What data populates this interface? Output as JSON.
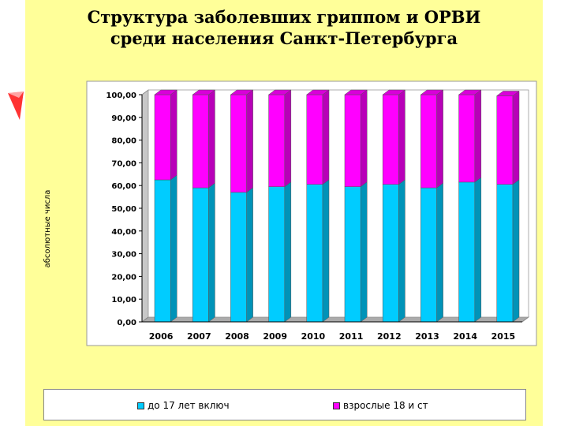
{
  "title_lines": [
    "Структура заболевших гриппом и ОРВИ",
    "среди населения Санкт-Петербурга"
  ],
  "colors": {
    "background": "#ffff99",
    "plot_fill": "#ffffff",
    "wall": "#c8c8c8",
    "series_children": "#00ccff",
    "series_adults": "#ff00ff",
    "decor_red": "#ff3333"
  },
  "chart_data": {
    "type": "bar",
    "stacked": true,
    "three_d": true,
    "categories": [
      "2006",
      "2007",
      "2008",
      "2009",
      "2010",
      "2011",
      "2012",
      "2013",
      "2014",
      "2015"
    ],
    "series": [
      {
        "name": "до 17 лет включ",
        "values": [
          62.5,
          59.0,
          57.0,
          59.5,
          60.5,
          59.5,
          60.5,
          59.0,
          61.5,
          60.5
        ]
      },
      {
        "name": "взрослые 18 и ст",
        "values": [
          37.5,
          41.0,
          43.0,
          40.5,
          39.5,
          40.5,
          39.5,
          41.0,
          38.5,
          39.0
        ]
      }
    ],
    "title": "",
    "xlabel": "",
    "ylabel": "абсолютные числа",
    "ylim": [
      0,
      100
    ],
    "yticks": [
      "0,00",
      "10,00",
      "20,00",
      "30,00",
      "40,00",
      "50,00",
      "60,00",
      "70,00",
      "80,00",
      "90,00",
      "100,00"
    ],
    "grid": false,
    "legend_position": "bottom"
  }
}
